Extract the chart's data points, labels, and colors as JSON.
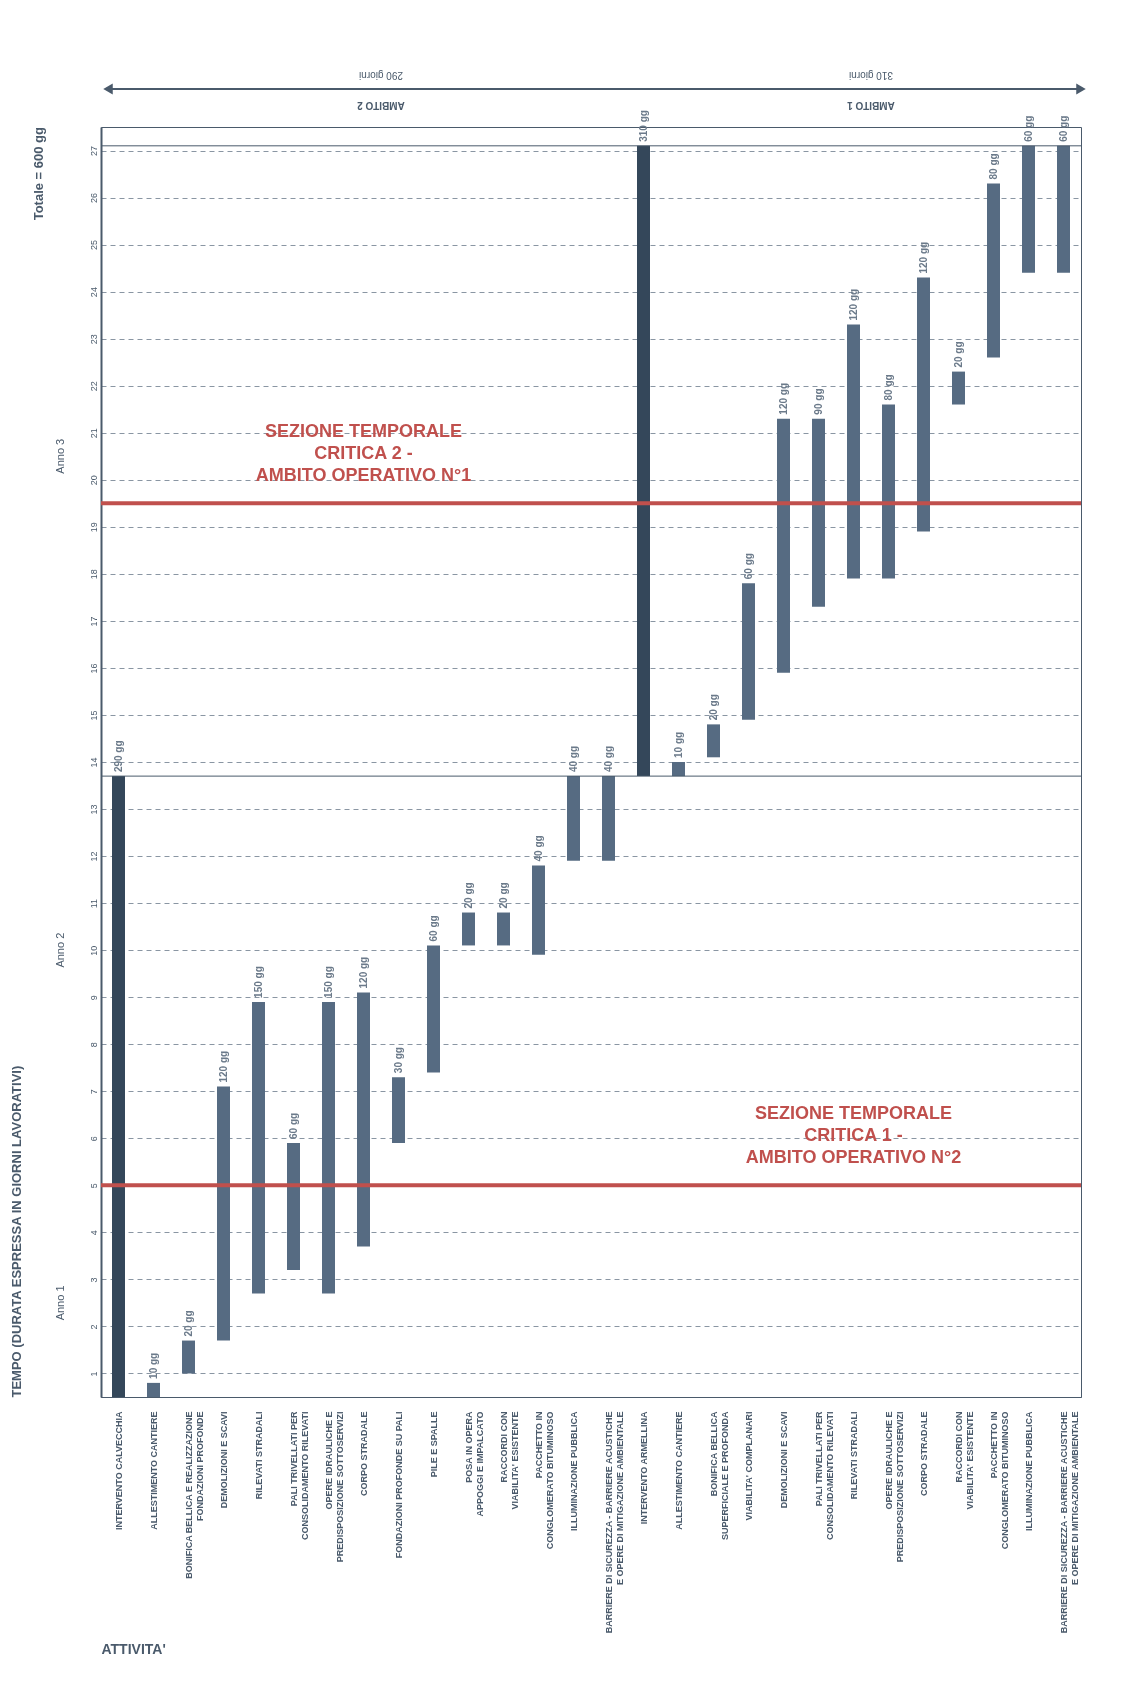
{
  "chart_data": {
    "type": "bar",
    "xlabel": "ATTIVITA'",
    "ylabel": "TEMPO (DURATA ESPRESSA IN GIORNI LAVORATIVI)",
    "categories": [
      "INTERVENTO CALVECCHIA",
      "ALLESTIMENTO CANTIERE",
      "BONIFICA BELLICA E REALIZZAZIONE FONDAZIONI PROFONDE",
      "DEMOLIZIONI E SCAVI",
      "RILEVATI STRADALI",
      "PALI TRIVELLATI PER CONSOLIDAMENTO RILEVATI",
      "OPERE IDRAULICHE E PREDISPOSIZIONE SOTTOSERVIZI",
      "CORPO STRADALE",
      "FONDAZIONI PROFONDE SU PALI",
      "PILE E SPALLE",
      "POSA IN OPERA APPOGGI E IMPALCATO",
      "RACCORDI CON VIABILITA' ESISTENTE",
      "PACCHETTO IN CONGLOMERATO BITUMINOSO",
      "ILLUMINAZIONE PUBBLICA",
      "BARRIERE DI SICUREZZA - BARRIERE ACUSTICHE E OPERE DI MITIGAZIONE AMBIENTALE",
      "INTERVENTO ARMELLINA",
      "ALLESTIMENTO CANTIERE",
      "BONIFICA BELLICA SUPERFICIALE E PROFONDA",
      "VIABILITA' COMPLANARI",
      "DEMOLIZIONI E SCAVI",
      "PALI TRIVELLATI PER CONSOLIDAMENTO RILEVATI",
      "RILEVATI STRADALI",
      "OPERE IDRAULICHE E PREDISPOSIZIONE SOTTOSERVIZI",
      "CORPO STRADALE",
      "RACCORDI CON VIABILITA' ESISTENTE",
      "PACCHETTO IN CONGLOMERATO BITUMINOSO",
      "ILLUMINAZIONE PUBBLICA",
      "BARRIERE DI SICUREZZA - BARRIERE ACUSTICHE E OPERE DI MITIGAZIONE AMBIENTALE"
    ],
    "base": [
      0.5,
      0.5,
      1,
      1.7,
      2.7,
      3.2,
      2.7,
      3.7,
      5.9,
      7.4,
      10.1,
      10.1,
      9.9,
      11.9,
      11.9,
      13.7,
      13.7,
      14.1,
      14.9,
      15.9,
      17.3,
      17.9,
      17.9,
      18.9,
      21.6,
      22.6,
      24.4,
      24.4
    ],
    "values": [
      13.2,
      0.3,
      0.7,
      5.4,
      6.2,
      2.7,
      6.2,
      5.4,
      1.4,
      2.7,
      0.7,
      0.7,
      1.9,
      1.8,
      1.8,
      13.4,
      0.3,
      0.7,
      2.9,
      5.4,
      4.0,
      5.4,
      3.7,
      5.4,
      0.7,
      3.7,
      2.7,
      2.7
    ],
    "colors": [
      "#34475a",
      "#566b82",
      "#566b82",
      "#566b82",
      "#566b82",
      "#566b82",
      "#566b82",
      "#566b82",
      "#566b82",
      "#566b82",
      "#566b82",
      "#566b82",
      "#566b82",
      "#566b82",
      "#566b82",
      "#34475a",
      "#566b82",
      "#566b82",
      "#566b82",
      "#566b82",
      "#566b82",
      "#566b82",
      "#566b82",
      "#566b82",
      "#566b82",
      "#566b82",
      "#566b82",
      "#566b82"
    ],
    "ylim": [
      0.5,
      27.5
    ],
    "yticks": [
      1,
      2,
      3,
      4,
      5,
      6,
      7,
      8,
      9,
      10,
      11,
      12,
      13,
      14,
      15,
      16,
      17,
      18,
      19,
      20,
      21,
      22,
      23,
      24,
      25,
      26,
      27
    ],
    "grid": "y",
    "ref_lines": [
      {
        "axis": "y",
        "value": 19.5,
        "label": "SEZIONE TEMPORALE\nCRITICA 2 -\nAMBITO OPERATIVO N°1",
        "color": "#c0504d"
      },
      {
        "axis": "y",
        "value": 5.0,
        "label": "SEZIONE TEMPORALE\nCRITICA 1 -\nAMBITO OPERATIVO N°2",
        "color": "#c0504d"
      },
      {
        "axis": "y",
        "value": 13.7,
        "color": "#4a5a6b"
      },
      {
        "axis": "y",
        "value": 27.1,
        "color": "#4a5a6b"
      }
    ],
    "annotations": [
      "AMBITO 2",
      "290 giorni",
      "AMBITO 1",
      "310 giorni",
      "Totale = 600 gg",
      "Anno 1",
      "Anno 2",
      "Anno 3",
      "290 gg",
      "10 gg",
      "20 gg",
      "120 gg",
      "150 gg",
      "60 gg",
      "150 gg",
      "120 gg",
      "30 gg",
      "60 gg",
      "20 gg",
      "20 gg",
      "40 gg",
      "40 gg",
      "40 gg",
      "310 gg",
      "10 gg",
      "20 gg",
      "60 gg",
      "120 gg",
      "90 gg",
      "120 gg",
      "80 gg",
      "120 gg",
      "20 gg",
      "80 gg",
      "60 gg",
      "60 gg"
    ]
  }
}
